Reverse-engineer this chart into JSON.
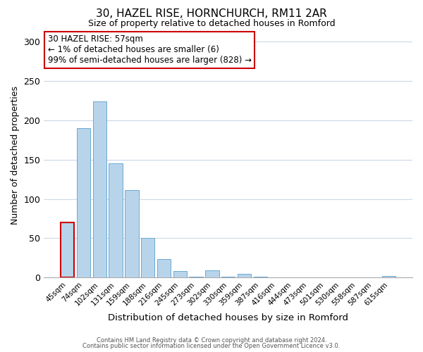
{
  "title": "30, HAZEL RISE, HORNCHURCH, RM11 2AR",
  "subtitle": "Size of property relative to detached houses in Romford",
  "xlabel": "Distribution of detached houses by size in Romford",
  "ylabel": "Number of detached properties",
  "bar_labels": [
    "45sqm",
    "74sqm",
    "102sqm",
    "131sqm",
    "159sqm",
    "188sqm",
    "216sqm",
    "245sqm",
    "273sqm",
    "302sqm",
    "330sqm",
    "359sqm",
    "387sqm",
    "416sqm",
    "444sqm",
    "473sqm",
    "501sqm",
    "530sqm",
    "558sqm",
    "587sqm",
    "615sqm"
  ],
  "bar_values": [
    70,
    190,
    224,
    145,
    111,
    50,
    24,
    8,
    1,
    9,
    1,
    5,
    1,
    0,
    0,
    0,
    0,
    0,
    0,
    0,
    2
  ],
  "bar_color": "#b8d4eb",
  "bar_edge_color": "#6aaad4",
  "highlight_bar_index": 0,
  "highlight_edge_color": "#cc0000",
  "annotation_title": "30 HAZEL RISE: 57sqm",
  "annotation_line1": "← 1% of detached houses are smaller (6)",
  "annotation_line2": "99% of semi-detached houses are larger (828) →",
  "annotation_box_color": "#ffffff",
  "annotation_border_color": "#cc0000",
  "ylim": [
    0,
    310
  ],
  "yticks": [
    0,
    50,
    100,
    150,
    200,
    250,
    300
  ],
  "footer1": "Contains HM Land Registry data © Crown copyright and database right 2024.",
  "footer2": "Contains public sector information licensed under the Open Government Licence v3.0.",
  "background_color": "#ffffff",
  "grid_color": "#ccd8e8"
}
